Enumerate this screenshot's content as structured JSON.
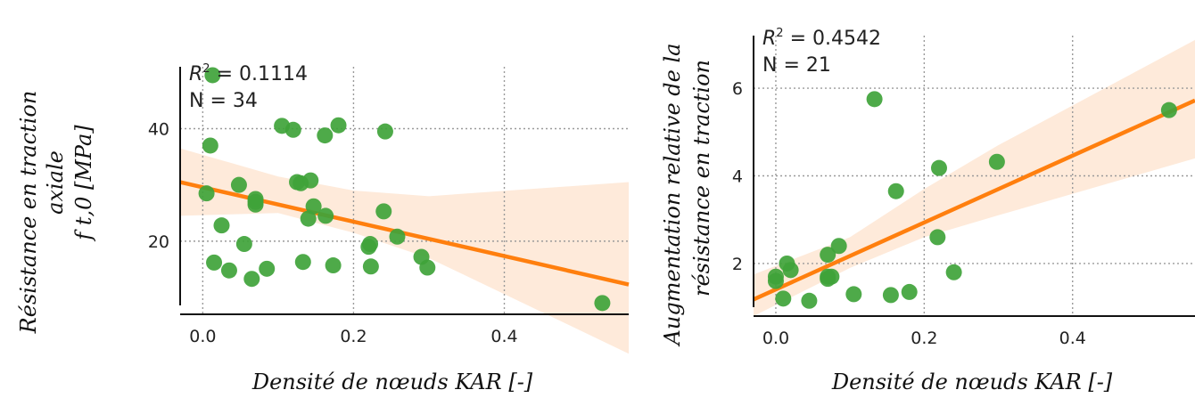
{
  "colors": {
    "points": "#3fa33a",
    "regression_line": "#ff7f0e",
    "confidence_band": "#fde3cd",
    "grid": "#9a9a9a",
    "axis": "#111111"
  },
  "chart_data": [
    {
      "type": "scatter",
      "xlabel": "Densité de nœuds KAR [-]",
      "ylabel_lines": [
        "Résistance en traction",
        "axiale",
        "f t,0 [MPa]"
      ],
      "ylabel_subscript": "t,0",
      "xlim": [
        -0.03,
        0.565
      ],
      "ylim": [
        7,
        51
      ],
      "xticks": [
        0.0,
        0.2,
        0.4
      ],
      "xtick_labels": [
        "0.0",
        "0.2",
        "0.4"
      ],
      "yticks": [
        20,
        40
      ],
      "ytick_labels": [
        "20",
        "40"
      ],
      "grid": true,
      "stats": {
        "r2_label": "R",
        "r2_exp": "2",
        "r2_text": " = 0.1114",
        "n_text": "N = 34"
      },
      "regression": {
        "x": [
          -0.03,
          0.565
        ],
        "y": [
          30.5,
          12.3
        ]
      },
      "band": {
        "x": [
          -0.03,
          0.1,
          0.2,
          0.3,
          0.565
        ],
        "lower": [
          24.5,
          25.0,
          21.5,
          17.0,
          0.0
        ],
        "upper": [
          36.5,
          31.5,
          29.0,
          28.0,
          30.5
        ]
      },
      "points": [
        [
          0.013,
          49.5
        ],
        [
          0.01,
          37.0
        ],
        [
          0.005,
          28.5
        ],
        [
          0.015,
          16.2
        ],
        [
          0.025,
          22.8
        ],
        [
          0.035,
          14.8
        ],
        [
          0.048,
          30.0
        ],
        [
          0.055,
          19.5
        ],
        [
          0.065,
          13.3
        ],
        [
          0.07,
          27.5
        ],
        [
          0.07,
          26.5
        ],
        [
          0.085,
          15.1
        ],
        [
          0.105,
          40.5
        ],
        [
          0.12,
          39.8
        ],
        [
          0.125,
          30.5
        ],
        [
          0.13,
          30.3
        ],
        [
          0.133,
          16.3
        ],
        [
          0.14,
          24.0
        ],
        [
          0.143,
          30.8
        ],
        [
          0.147,
          26.2
        ],
        [
          0.162,
          38.8
        ],
        [
          0.163,
          24.5
        ],
        [
          0.173,
          15.7
        ],
        [
          0.18,
          40.6
        ],
        [
          0.22,
          19.0
        ],
        [
          0.222,
          19.5
        ],
        [
          0.223,
          15.5
        ],
        [
          0.24,
          25.3
        ],
        [
          0.242,
          39.5
        ],
        [
          0.258,
          20.8
        ],
        [
          0.29,
          17.2
        ],
        [
          0.298,
          15.3
        ],
        [
          0.53,
          9.0
        ],
        [
          0.07,
          27.0
        ]
      ]
    },
    {
      "type": "scatter",
      "xlabel": "Densité de nœuds KAR [-]",
      "ylabel_lines": [
        "Augmentation relative de la",
        "résistance en traction"
      ],
      "xlim": [
        -0.03,
        0.565
      ],
      "ylim": [
        0.8,
        7.2
      ],
      "xticks": [
        0.0,
        0.2,
        0.4
      ],
      "xtick_labels": [
        "0.0",
        "0.2",
        "0.4"
      ],
      "yticks": [
        2,
        4,
        6
      ],
      "ytick_labels": [
        "2",
        "4",
        "6"
      ],
      "grid": true,
      "stats": {
        "r2_label": "R",
        "r2_exp": "2",
        "r2_text": " = 0.4542",
        "n_text": "N = 21"
      },
      "regression": {
        "x": [
          -0.03,
          0.565
        ],
        "y": [
          1.18,
          5.72
        ]
      },
      "band": {
        "x": [
          -0.03,
          0.1,
          0.2,
          0.3,
          0.565
        ],
        "lower": [
          0.8,
          1.9,
          2.6,
          3.1,
          4.4
        ],
        "upper": [
          1.75,
          2.6,
          3.7,
          4.7,
          7.1
        ]
      },
      "points": [
        [
          0.0,
          1.7
        ],
        [
          0.0,
          1.6
        ],
        [
          0.01,
          1.2
        ],
        [
          0.015,
          2.0
        ],
        [
          0.02,
          1.85
        ],
        [
          0.045,
          1.15
        ],
        [
          0.07,
          1.65
        ],
        [
          0.07,
          1.7
        ],
        [
          0.07,
          2.2
        ],
        [
          0.085,
          2.4
        ],
        [
          0.105,
          1.3
        ],
        [
          0.133,
          5.75
        ],
        [
          0.155,
          1.28
        ],
        [
          0.162,
          3.65
        ],
        [
          0.18,
          1.35
        ],
        [
          0.218,
          2.6
        ],
        [
          0.22,
          4.18
        ],
        [
          0.24,
          1.8
        ],
        [
          0.298,
          4.32
        ],
        [
          0.53,
          5.5
        ],
        [
          0.075,
          1.7
        ]
      ]
    }
  ]
}
